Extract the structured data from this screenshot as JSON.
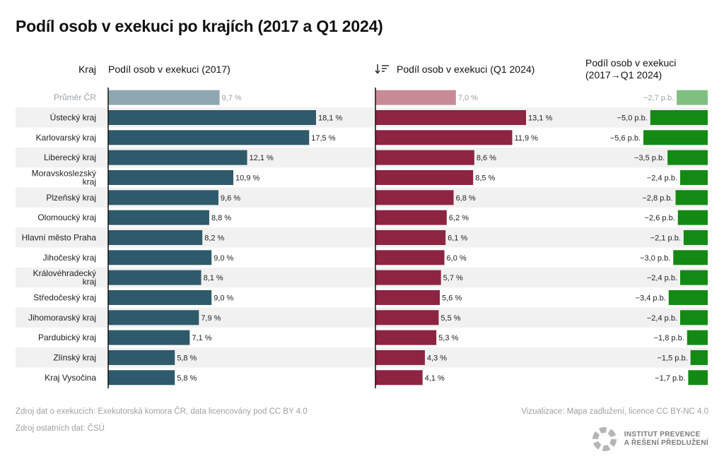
{
  "title": "Podíl osob v exekuci po krajích (2017 a Q1 2024)",
  "chart_data": {
    "type": "bar",
    "headers": {
      "region": "Kraj",
      "col2017": "Podíl osob v exekuci (2017)",
      "col2024": "Podíl osob v exekuci (Q1 2024)",
      "change_line1": "Podíl osob v exekuci",
      "change_line2": "(2017→Q1 2024)"
    },
    "sort_icon": "sort-descending-icon",
    "colors": {
      "bar2017": "#2e5a6b",
      "bar2017_avg": "#8fa7b0",
      "bar2024": "#8c2442",
      "bar2024_avg": "#c98a97",
      "change": "#148a14",
      "change_avg": "#7fbf7f",
      "stripe": "#f1f1f1"
    },
    "rows": [
      {
        "region": "Průměr ČR",
        "v2017": 9.7,
        "l2017": "9,7 %",
        "v2024": 7.0,
        "l2024": "7,0 %",
        "change": -2.7,
        "lchange": "−2,7 p.b.",
        "avg": true
      },
      {
        "region": "Ústecký kraj",
        "v2017": 18.1,
        "l2017": "18,1 %",
        "v2024": 13.1,
        "l2024": "13,1 %",
        "change": -5.0,
        "lchange": "−5,0 p.b."
      },
      {
        "region": "Karlovarský kraj",
        "v2017": 17.5,
        "l2017": "17,5 %",
        "v2024": 11.9,
        "l2024": "11,9 %",
        "change": -5.6,
        "lchange": "−5,6 p.b."
      },
      {
        "region": "Liberecký kraj",
        "v2017": 12.1,
        "l2017": "12,1 %",
        "v2024": 8.6,
        "l2024": "8,6 %",
        "change": -3.5,
        "lchange": "−3,5 p.b."
      },
      {
        "region": "Moravskoslezský kraj",
        "region_lines": [
          "Moravskoslezský",
          "kraj"
        ],
        "v2017": 10.9,
        "l2017": "10,9 %",
        "v2024": 8.5,
        "l2024": "8,5 %",
        "change": -2.4,
        "lchange": "−2,4 p.b."
      },
      {
        "region": "Plzeňský kraj",
        "v2017": 9.6,
        "l2017": "9,6 %",
        "v2024": 6.8,
        "l2024": "6,8 %",
        "change": -2.8,
        "lchange": "−2,8 p.b."
      },
      {
        "region": "Olomoucký kraj",
        "v2017": 8.8,
        "l2017": "8,8 %",
        "v2024": 6.2,
        "l2024": "6,2 %",
        "change": -2.6,
        "lchange": "−2,6 p.b."
      },
      {
        "region": "Hlavní město Praha",
        "v2017": 8.2,
        "l2017": "8,2 %",
        "v2024": 6.1,
        "l2024": "6,1 %",
        "change": -2.1,
        "lchange": "−2,1 p.b."
      },
      {
        "region": "Jihočeský kraj",
        "v2017": 9.0,
        "l2017": "9,0 %",
        "v2024": 6.0,
        "l2024": "6,0 %",
        "change": -3.0,
        "lchange": "−3,0 p.b."
      },
      {
        "region": "Královéhradecký kraj",
        "region_lines": [
          "Královéhradecký",
          "kraj"
        ],
        "v2017": 8.1,
        "l2017": "8,1 %",
        "v2024": 5.7,
        "l2024": "5,7 %",
        "change": -2.4,
        "lchange": "−2,4 p.b."
      },
      {
        "region": "Středočeský kraj",
        "v2017": 9.0,
        "l2017": "9,0 %",
        "v2024": 5.6,
        "l2024": "5,6 %",
        "change": -3.4,
        "lchange": "−3,4 p.b."
      },
      {
        "region": "Jihomoravský kraj",
        "v2017": 7.9,
        "l2017": "7,9 %",
        "v2024": 5.5,
        "l2024": "5,5 %",
        "change": -2.4,
        "lchange": "−2,4 p.b."
      },
      {
        "region": "Pardubický kraj",
        "v2017": 7.1,
        "l2017": "7,1 %",
        "v2024": 5.3,
        "l2024": "5,3 %",
        "change": -1.8,
        "lchange": "−1,8 p.b."
      },
      {
        "region": "Zlínský kraj",
        "v2017": 5.8,
        "l2017": "5,8 %",
        "v2024": 4.3,
        "l2024": "4,3 %",
        "change": -1.5,
        "lchange": "−1,5 p.b."
      },
      {
        "region": "Kraj Vysočina",
        "v2017": 5.8,
        "l2017": "5,8 %",
        "v2024": 4.1,
        "l2024": "4,1 %",
        "change": -1.7,
        "lchange": "−1,7 p.b."
      }
    ]
  },
  "footer": {
    "source1": "Zdroj dat o exekucích: Exekutorská komora ČR, data licencovány pod CC BY 4.0",
    "source2": "Zdroj ostatních dat: ČSÚ",
    "credit": "Vizualizace: Mapa zadlužení, licence CC BY-NC 4.0",
    "logo_line1": "INSTITUT PREVENCE",
    "logo_line2": "A ŘEŠENÍ PŘEDLUŽENÍ"
  }
}
